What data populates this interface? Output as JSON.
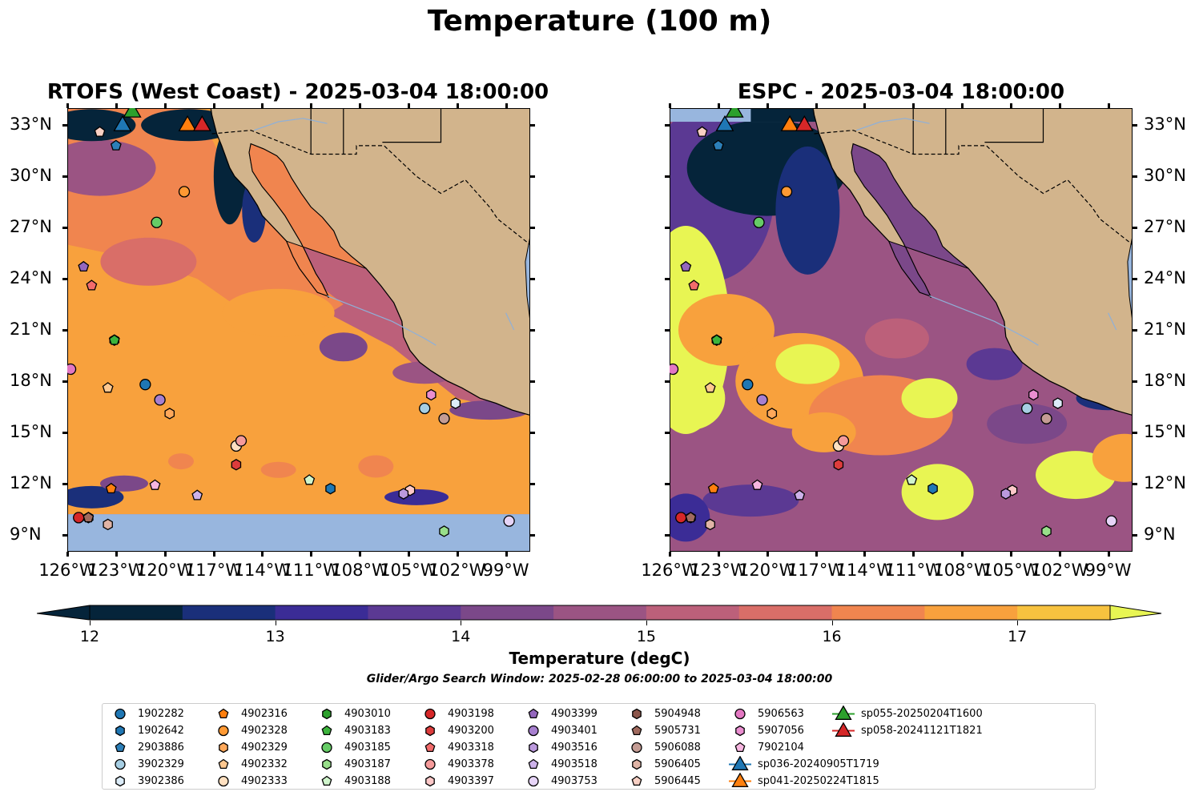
{
  "title": "Temperature (100 m)",
  "panels": [
    {
      "title": "RTOFS (West Coast) - 2025-03-04 18:00:00",
      "model": "rtofs"
    },
    {
      "title": "ESPC - 2025-03-04 18:00:00",
      "model": "espc"
    }
  ],
  "axes": {
    "lat_labels": [
      "33°N",
      "30°N",
      "27°N",
      "24°N",
      "21°N",
      "18°N",
      "15°N",
      "12°N",
      "9°N"
    ],
    "lon_labels": [
      "126°W",
      "123°W",
      "120°W",
      "117°W",
      "114°W",
      "111°W",
      "108°W",
      "105°W",
      "102°W",
      "99°W"
    ],
    "lon_range": [
      -126,
      -97.5
    ],
    "lat_range": [
      8,
      34
    ]
  },
  "colorbar": {
    "label": "Temperature (degC)",
    "ticks": [
      "12",
      "13",
      "14",
      "15",
      "16",
      "17"
    ],
    "range": [
      12,
      17.5
    ],
    "colors": [
      "#05243a",
      "#1a2f7a",
      "#3b2c96",
      "#5b3993",
      "#7b4889",
      "#9b5483",
      "#bc607a",
      "#d96e68",
      "#f0854f",
      "#f8a13d",
      "#f7c23f"
    ],
    "extend_low": "#05243a",
    "extend_high": "#e8f553"
  },
  "colors": {
    "land": "#d2b48c",
    "shelf": "#98b6de",
    "open_ocean_warm": "#e8f553"
  },
  "search_window": "Glider/Argo Search Window: 2025-02-28 06:00:00 to 2025-03-04 18:00:00",
  "legend": [
    {
      "label": "1902282",
      "marker": "circle",
      "color": "#1f77b4"
    },
    {
      "label": "1902642",
      "marker": "hexagon",
      "color": "#1f77b4"
    },
    {
      "label": "2903886",
      "marker": "pentagon",
      "color": "#2c7fb8"
    },
    {
      "label": "3902329",
      "marker": "circle",
      "color": "#a6cee3"
    },
    {
      "label": "3902386",
      "marker": "hexagon",
      "color": "#dcecf8"
    },
    {
      "label": "4902316",
      "marker": "pentagon",
      "color": "#ff7f0e"
    },
    {
      "label": "4902328",
      "marker": "circle",
      "color": "#ff9933"
    },
    {
      "label": "4902329",
      "marker": "hexagon",
      "color": "#ffa85a"
    },
    {
      "label": "4902332",
      "marker": "pentagon",
      "color": "#ffc890"
    },
    {
      "label": "4902333",
      "marker": "circle",
      "color": "#ffe0c0"
    },
    {
      "label": "4903010",
      "marker": "hexagon",
      "color": "#2ca02c"
    },
    {
      "label": "4903183",
      "marker": "pentagon",
      "color": "#3cb43c"
    },
    {
      "label": "4903185",
      "marker": "circle",
      "color": "#66cc66"
    },
    {
      "label": "4903187",
      "marker": "hexagon",
      "color": "#98df8a"
    },
    {
      "label": "4903188",
      "marker": "pentagon",
      "color": "#d0f5cc"
    },
    {
      "label": "4903198",
      "marker": "circle",
      "color": "#d62728"
    },
    {
      "label": "4903200",
      "marker": "hexagon",
      "color": "#dd3c3c"
    },
    {
      "label": "4903318",
      "marker": "pentagon",
      "color": "#f26b6b"
    },
    {
      "label": "4903378",
      "marker": "circle",
      "color": "#f59a9a"
    },
    {
      "label": "4903397",
      "marker": "hexagon",
      "color": "#fcc8c8"
    },
    {
      "label": "4903399",
      "marker": "pentagon",
      "color": "#9467bd"
    },
    {
      "label": "4903401",
      "marker": "circle",
      "color": "#a77fcf"
    },
    {
      "label": "4903516",
      "marker": "hexagon",
      "color": "#bb99dd"
    },
    {
      "label": "4903518",
      "marker": "pentagon",
      "color": "#cdb2ea"
    },
    {
      "label": "4903753",
      "marker": "circle",
      "color": "#e6d4f7"
    },
    {
      "label": "5904948",
      "marker": "hexagon",
      "color": "#8c564b"
    },
    {
      "label": "5905731",
      "marker": "pentagon",
      "color": "#a06a5e"
    },
    {
      "label": "5906088",
      "marker": "circle",
      "color": "#c49c94"
    },
    {
      "label": "5906405",
      "marker": "hexagon",
      "color": "#e0b4a6"
    },
    {
      "label": "5906445",
      "marker": "pentagon",
      "color": "#f8d0c4"
    },
    {
      "label": "5906563",
      "marker": "circle",
      "color": "#e377c2"
    },
    {
      "label": "5907056",
      "marker": "hexagon",
      "color": "#ea8ed0"
    },
    {
      "label": "7902104",
      "marker": "pentagon",
      "color": "#f7b6e0"
    },
    {
      "label": "sp036-20240905T1719",
      "marker": "triangle",
      "color": "#1f77b4"
    },
    {
      "label": "sp041-20250224T1815",
      "marker": "triangle",
      "color": "#ff7f0e"
    },
    {
      "label": "sp055-20250204T1600",
      "marker": "triangle",
      "color": "#2ca02c"
    },
    {
      "label": "sp058-20241121T1821",
      "marker": "triangle",
      "color": "#d62728"
    }
  ],
  "observations": [
    {
      "id": "1902282",
      "lon": -121.2,
      "lat": 17.8
    },
    {
      "id": "1902642",
      "lon": -109.8,
      "lat": 11.7
    },
    {
      "id": "2903886",
      "lon": -123.0,
      "lat": 31.8
    },
    {
      "id": "3902329",
      "lon": -104.0,
      "lat": 16.4
    },
    {
      "id": "3902386",
      "lon": -102.1,
      "lat": 16.7
    },
    {
      "id": "4902316",
      "lon": -123.3,
      "lat": 11.7
    },
    {
      "id": "4902328",
      "lon": -118.8,
      "lat": 29.1
    },
    {
      "id": "4902329",
      "lon": -119.7,
      "lat": 16.1
    },
    {
      "id": "4902332",
      "lon": -123.5,
      "lat": 17.6
    },
    {
      "id": "4902333",
      "lon": -115.6,
      "lat": 14.2
    },
    {
      "id": "4903010",
      "lon": -123.1,
      "lat": 20.4
    },
    {
      "id": "4903183",
      "lon": -123.1,
      "lat": 20.4
    },
    {
      "id": "4903185",
      "lon": -120.5,
      "lat": 27.3
    },
    {
      "id": "4903187",
      "lon": -102.8,
      "lat": 9.2
    },
    {
      "id": "4903188",
      "lon": -111.1,
      "lat": 12.2
    },
    {
      "id": "4903198",
      "lon": -125.3,
      "lat": 10.0
    },
    {
      "id": "4903200",
      "lon": -115.6,
      "lat": 13.1
    },
    {
      "id": "4903318",
      "lon": -124.5,
      "lat": 23.6
    },
    {
      "id": "4903378",
      "lon": -115.3,
      "lat": 14.5
    },
    {
      "id": "4903397",
      "lon": -104.9,
      "lat": 11.6
    },
    {
      "id": "4903399",
      "lon": -125.0,
      "lat": 24.7
    },
    {
      "id": "4903401",
      "lon": -120.3,
      "lat": 16.9
    },
    {
      "id": "4903516",
      "lon": -105.3,
      "lat": 11.4
    },
    {
      "id": "4903518",
      "lon": -118.0,
      "lat": 11.3
    },
    {
      "id": "4903753",
      "lon": -98.8,
      "lat": 9.8
    },
    {
      "id": "5904948",
      "lon": -124.7,
      "lat": 10.0
    },
    {
      "id": "5905731",
      "lon": -124.7,
      "lat": 10.0
    },
    {
      "id": "5906088",
      "lon": -102.8,
      "lat": 15.8
    },
    {
      "id": "5906405",
      "lon": -123.5,
      "lat": 9.6
    },
    {
      "id": "5906445",
      "lon": -124.0,
      "lat": 32.6
    },
    {
      "id": "5906563",
      "lon": -125.8,
      "lat": 18.7
    },
    {
      "id": "5907056",
      "lon": -103.6,
      "lat": 17.2
    },
    {
      "id": "7902104",
      "lon": -120.6,
      "lat": 11.9
    },
    {
      "id": "sp036-20240905T1719",
      "lon": -122.6,
      "lat": 33.1
    },
    {
      "id": "sp041-20250224T1815",
      "lon": -118.6,
      "lat": 33.1
    },
    {
      "id": "sp055-20250204T1600",
      "lon": -122.0,
      "lat": 33.9
    },
    {
      "id": "sp058-20241121T1821",
      "lon": -117.7,
      "lat": 33.1
    }
  ]
}
